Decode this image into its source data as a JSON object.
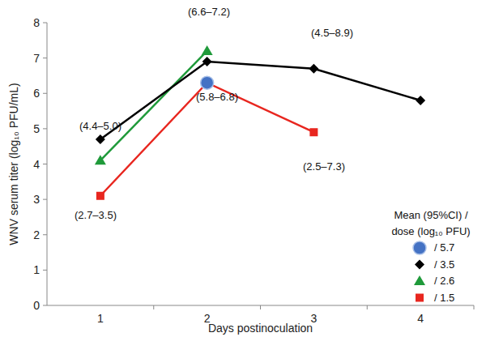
{
  "chart_data": {
    "type": "line",
    "y_label": "WNV serum titer (log₁₀ PFU/mL)",
    "x_label": "Days postinoculation",
    "categories": [
      "1",
      "2",
      "3",
      "4"
    ],
    "ylim": [
      0,
      8
    ],
    "yticks": [
      0,
      1,
      2,
      3,
      4,
      5,
      6,
      7,
      8
    ],
    "grid": false,
    "legend": "right",
    "legend_title": "Mean (95%CI) / dose (log₁₀ PFU)",
    "annotations": [
      "(4.4–5.0)",
      "(6.6–7.2)",
      "(4.5–8.9)",
      "(5.8–6.8)",
      "(2.5–7.3)",
      "(2.7–3.5)"
    ],
    "series": [
      {
        "name": "/ 5.7",
        "color": "#4472c4",
        "marker": "circle",
        "line_style": "none",
        "values": [
          null,
          6.3,
          null,
          null
        ]
      },
      {
        "name": "/ 3.5",
        "color": "#000000",
        "marker": "diamond",
        "line_style": "solid",
        "values": [
          4.7,
          6.9,
          6.7,
          5.8
        ]
      },
      {
        "name": "/ 2.6",
        "color": "#1f9a3a",
        "marker": "triangle",
        "line_style": "solid",
        "values": [
          4.1,
          7.2,
          null,
          null
        ]
      },
      {
        "name": "/ 1.5",
        "color": "#e8261f",
        "marker": "square",
        "line_style": "solid",
        "values": [
          3.1,
          6.3,
          4.9,
          null
        ]
      }
    ]
  }
}
